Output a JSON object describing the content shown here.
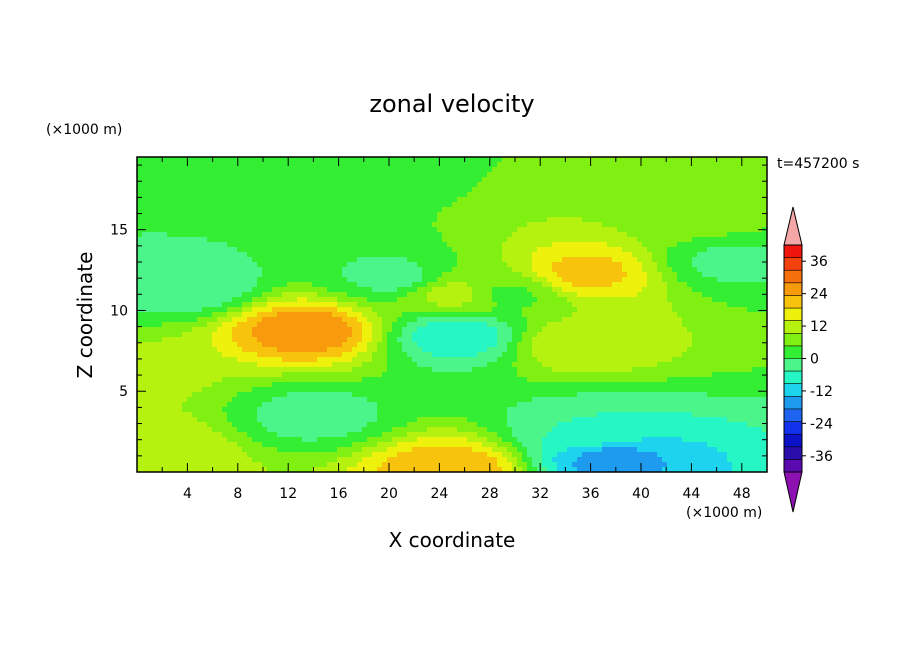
{
  "chart_data": {
    "type": "heatmap",
    "title": "zonal velocity",
    "xlabel": "X coordinate",
    "ylabel": "Z coordinate",
    "x_unit": "(×1000 m)",
    "y_unit": "(×1000 m)",
    "timestamp": "t=457200 s",
    "xlim": [
      0,
      50
    ],
    "ylim": [
      0,
      19.5
    ],
    "x_ticks": [
      "4",
      "8",
      "12",
      "16",
      "20",
      "24",
      "28",
      "32",
      "36",
      "40",
      "44",
      "48"
    ],
    "y_ticks": [
      "5",
      "10",
      "15"
    ],
    "colorbar": {
      "range": [
        -42,
        42
      ],
      "step": 4,
      "tick_labels": [
        "36",
        "24",
        "12",
        "0",
        "-12",
        "-24",
        "-36"
      ],
      "colors": [
        "#5b0ab0",
        "#2a0dab",
        "#0b12c8",
        "#1232ee",
        "#1e64f0",
        "#1e9aee",
        "#1ed3ee",
        "#26f5c4",
        "#4bf58a",
        "#33ee33",
        "#7ff012",
        "#b6f20f",
        "#eef10c",
        "#f8c30c",
        "#f79a0c",
        "#f6700d",
        "#f3420d",
        "#f0160e"
      ],
      "under_color": "#8d10b0",
      "over_color": "#f5a7a7"
    },
    "features": [
      {
        "x": 13.5,
        "z": 8.8,
        "value": 18
      },
      {
        "x": 35.5,
        "z": 12.3,
        "value": 12
      },
      {
        "x": 25,
        "z": 0.2,
        "value": 14
      },
      {
        "x": 1.5,
        "z": 1.3,
        "value": 6
      },
      {
        "x": 25,
        "z": 11,
        "value": 4
      },
      {
        "x": 35,
        "z": 8,
        "value": 6
      },
      {
        "x": 25.5,
        "z": 8.5,
        "value": -14
      },
      {
        "x": 4,
        "z": 11.5,
        "value": -10
      },
      {
        "x": 37.5,
        "z": 0.8,
        "value": -20
      },
      {
        "x": 36,
        "z": 2.5,
        "value": -10
      },
      {
        "x": 14,
        "z": 3.5,
        "value": -8
      },
      {
        "x": 20.5,
        "z": 12,
        "value": -8
      },
      {
        "x": 3,
        "z": 17,
        "value": -6
      },
      {
        "x": 47,
        "z": 13,
        "value": -7
      },
      {
        "x": 29.5,
        "z": 11,
        "value": -3
      },
      {
        "x": 44,
        "z": 16,
        "value": 1
      },
      {
        "x": 16,
        "z": 18.5,
        "value": -4
      },
      {
        "x": 0,
        "z": 6,
        "value": 3
      }
    ]
  }
}
